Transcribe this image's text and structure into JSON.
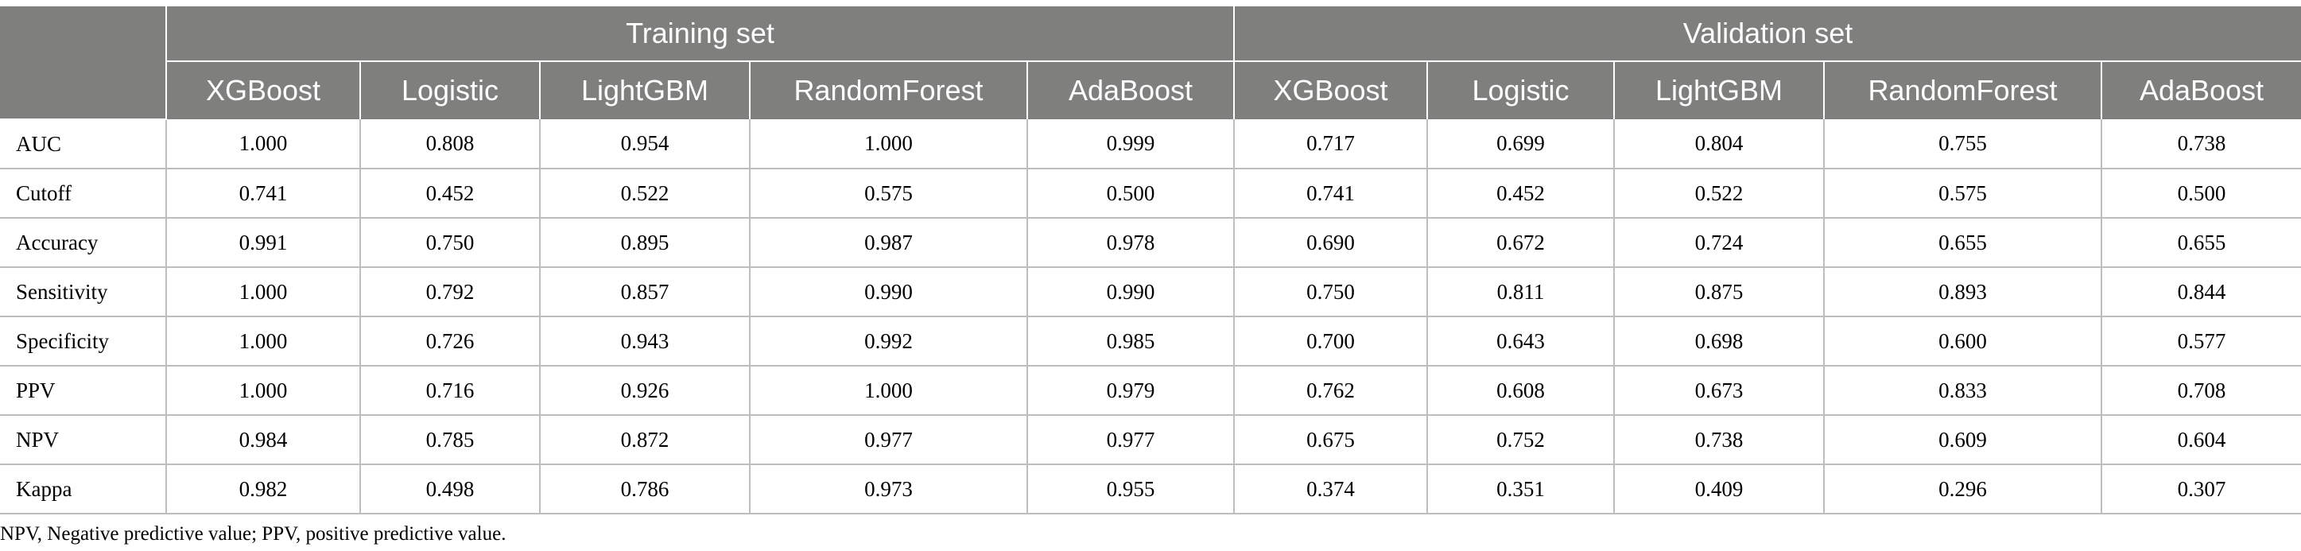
{
  "table": {
    "groups": [
      "Training set",
      "Validation set"
    ],
    "models": [
      "XGBoost",
      "Logistic",
      "LightGBM",
      "RandomForest",
      "AdaBoost"
    ],
    "rows": [
      {
        "label": "AUC",
        "values": [
          "1.000",
          "0.808",
          "0.954",
          "1.000",
          "0.999",
          "0.717",
          "0.699",
          "0.804",
          "0.755",
          "0.738"
        ]
      },
      {
        "label": "Cutoff",
        "values": [
          "0.741",
          "0.452",
          "0.522",
          "0.575",
          "0.500",
          "0.741",
          "0.452",
          "0.522",
          "0.575",
          "0.500"
        ]
      },
      {
        "label": "Accuracy",
        "values": [
          "0.991",
          "0.750",
          "0.895",
          "0.987",
          "0.978",
          "0.690",
          "0.672",
          "0.724",
          "0.655",
          "0.655"
        ]
      },
      {
        "label": "Sensitivity",
        "values": [
          "1.000",
          "0.792",
          "0.857",
          "0.990",
          "0.990",
          "0.750",
          "0.811",
          "0.875",
          "0.893",
          "0.844"
        ]
      },
      {
        "label": "Specificity",
        "values": [
          "1.000",
          "0.726",
          "0.943",
          "0.992",
          "0.985",
          "0.700",
          "0.643",
          "0.698",
          "0.600",
          "0.577"
        ]
      },
      {
        "label": "PPV",
        "values": [
          "1.000",
          "0.716",
          "0.926",
          "1.000",
          "0.979",
          "0.762",
          "0.608",
          "0.673",
          "0.833",
          "0.708"
        ]
      },
      {
        "label": "NPV",
        "values": [
          "0.984",
          "0.785",
          "0.872",
          "0.977",
          "0.977",
          "0.675",
          "0.752",
          "0.738",
          "0.609",
          "0.604"
        ]
      },
      {
        "label": "Kappa",
        "values": [
          "0.982",
          "0.498",
          "0.786",
          "0.973",
          "0.955",
          "0.374",
          "0.351",
          "0.409",
          "0.296",
          "0.307"
        ]
      }
    ]
  },
  "footnote": "NPV, Negative predictive value; PPV, positive predictive value.",
  "colors": {
    "header_bg": "#7f807d",
    "header_text": "#ffffff",
    "grid": "#bdbdbd"
  }
}
